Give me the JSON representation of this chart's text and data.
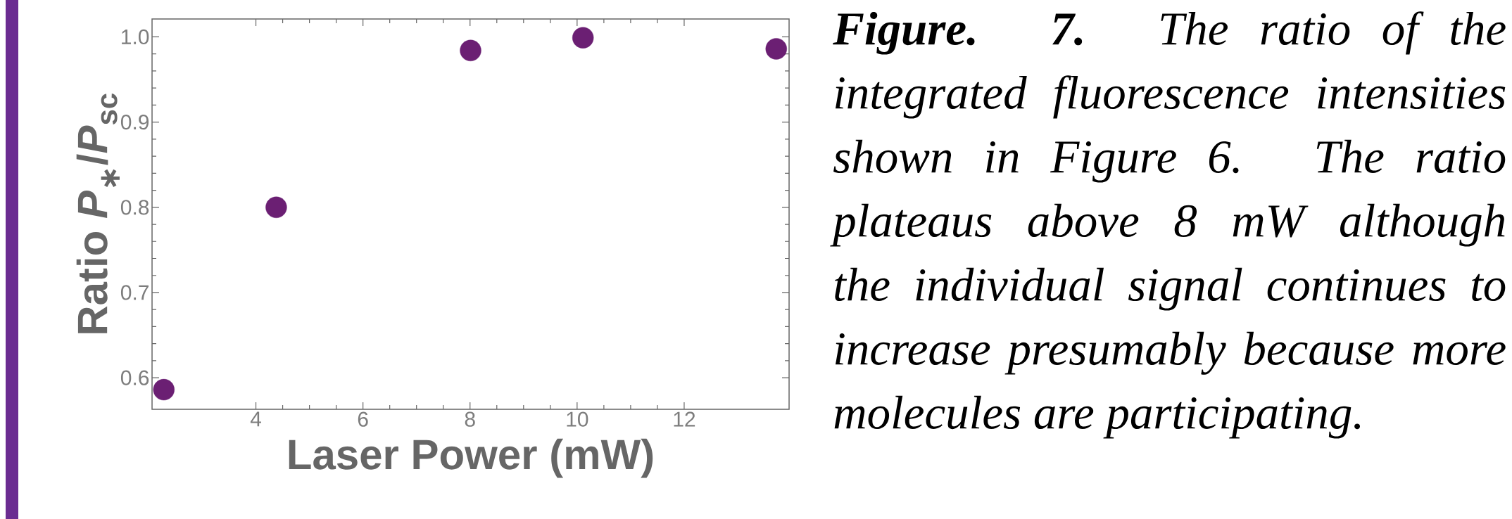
{
  "chart_data": {
    "type": "scatter",
    "xlabel": "Laser Power (mW)",
    "ylabel": "Ratio *P*$_{∗}$/*P*$_{sc}$",
    "x": [
      2.28,
      4.38,
      8.01,
      10.11,
      13.72
    ],
    "values": [
      0.586,
      0.8,
      0.984,
      0.999,
      0.986
    ],
    "color": "#6b1f73",
    "xlim": [
      2.06,
      13.96
    ],
    "ylim": [
      0.563,
      1.021
    ],
    "xticks": [
      4,
      6,
      8,
      10,
      12
    ],
    "yticks": [
      0.6,
      0.7,
      0.8,
      0.9,
      {
        "value": 1.0,
        "label": "1.0"
      }
    ],
    "annotations": [
      "**Figure. 7.** The ratio of the integrated fluorescence intensities shown in Figure 6. The ratio plateaus above 8 mW although the individual signal continues to increase presumably because more molecules are participating."
    ]
  }
}
